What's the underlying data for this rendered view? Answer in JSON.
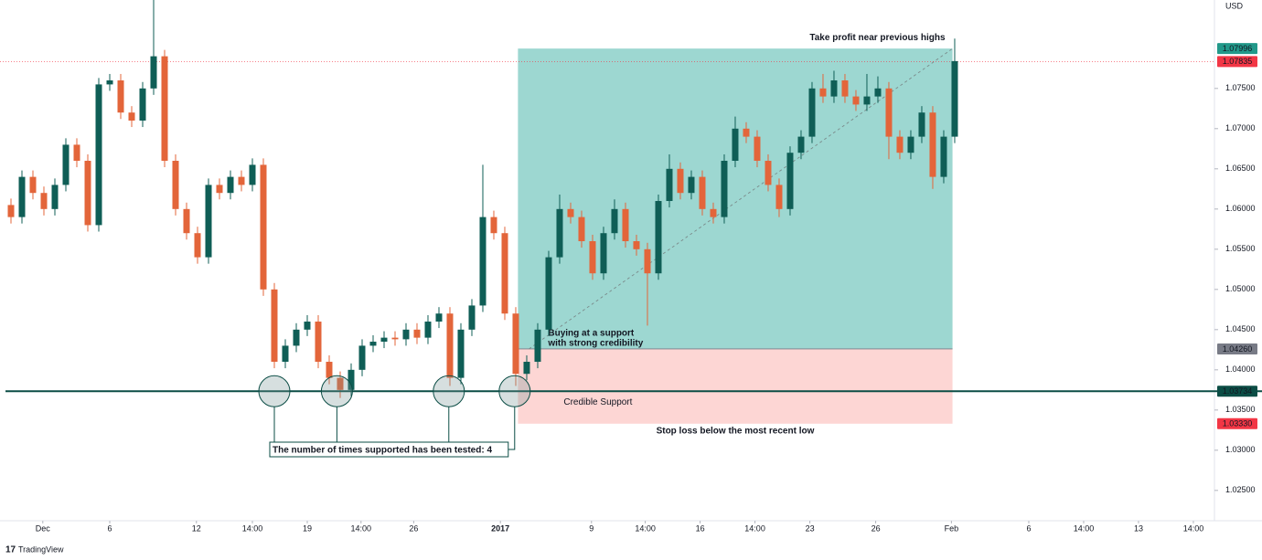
{
  "chart_data": {
    "type": "candlestick",
    "currency": "USD",
    "categories": [
      null,
      null,
      null,
      null,
      null,
      null,
      null,
      null,
      null,
      null,
      null,
      null,
      null,
      null,
      null,
      null,
      null,
      null,
      null,
      null,
      null,
      null,
      null,
      null,
      null,
      null,
      null,
      null,
      null,
      null,
      null,
      null,
      null,
      null,
      null,
      null,
      null,
      null,
      null,
      null,
      null,
      null,
      null,
      null,
      null,
      null,
      null,
      null,
      null,
      null,
      null,
      null,
      null,
      null,
      null,
      null,
      null,
      null,
      null,
      null,
      null,
      null,
      null,
      null,
      null,
      null,
      null,
      null,
      null,
      null,
      null,
      null,
      null,
      null,
      null,
      null,
      null,
      null,
      null,
      null,
      null,
      null,
      null,
      null,
      null,
      null,
      null
    ],
    "open": [
      1.0605,
      1.059,
      1.064,
      1.062,
      1.06,
      1.063,
      1.068,
      1.066,
      1.058,
      1.0755,
      1.076,
      1.072,
      1.071,
      1.075,
      1.079,
      1.066,
      1.06,
      1.057,
      1.054,
      1.063,
      1.062,
      1.064,
      1.063,
      1.0655,
      1.05,
      1.041,
      1.043,
      1.045,
      1.046,
      1.041,
      1.039,
      1.0375,
      1.04,
      1.043,
      1.0435,
      1.044,
      1.0438,
      1.045,
      1.044,
      1.046,
      1.047,
      1.039,
      1.045,
      1.048,
      1.059,
      1.057,
      1.047,
      1.0395,
      1.041,
      1.045,
      1.054,
      1.06,
      1.059,
      1.056,
      1.052,
      1.057,
      1.06,
      1.056,
      1.055,
      1.052,
      1.061,
      1.065,
      1.062,
      1.064,
      1.06,
      1.059,
      1.066,
      1.07,
      1.069,
      1.066,
      1.063,
      1.06,
      1.067,
      1.069,
      1.075,
      1.074,
      1.076,
      1.074,
      1.073,
      1.074,
      1.075,
      1.069,
      1.067,
      1.069,
      1.072,
      1.064,
      1.069
    ],
    "high": [
      1.0613,
      1.0648,
      1.0648,
      1.0628,
      1.0638,
      1.0688,
      1.0688,
      1.0668,
      1.0763,
      1.0768,
      1.0768,
      1.0728,
      1.0758,
      1.086,
      1.0798,
      1.0668,
      1.0608,
      1.0578,
      1.0638,
      1.0638,
      1.0648,
      1.0648,
      1.0663,
      1.0663,
      1.0508,
      1.0438,
      1.0458,
      1.0468,
      1.0468,
      1.0418,
      1.0398,
      1.0408,
      1.0438,
      1.0443,
      1.0448,
      1.0448,
      1.0458,
      1.0458,
      1.0468,
      1.0478,
      1.0478,
      1.0458,
      1.0488,
      1.0655,
      1.0598,
      1.0578,
      1.0478,
      1.0418,
      1.0458,
      1.0548,
      1.0618,
      1.0608,
      1.0598,
      1.0568,
      1.0578,
      1.0612,
      1.0608,
      1.0568,
      1.0558,
      1.0618,
      1.0668,
      1.0658,
      1.0648,
      1.0648,
      1.0608,
      1.0668,
      1.0715,
      1.0708,
      1.0698,
      1.0668,
      1.0638,
      1.0678,
      1.0698,
      1.0758,
      1.0768,
      1.0772,
      1.0768,
      1.0748,
      1.0768,
      1.0765,
      1.0758,
      1.0698,
      1.0698,
      1.0728,
      1.0728,
      1.0698,
      1.0812
    ],
    "low": [
      1.0582,
      1.0582,
      1.0612,
      1.0592,
      1.0592,
      1.0622,
      1.0652,
      1.0572,
      1.0572,
      1.0747,
      1.0712,
      1.0702,
      1.0702,
      1.0742,
      1.0652,
      1.0592,
      1.0562,
      1.0532,
      1.0532,
      1.0612,
      1.0612,
      1.0622,
      1.0622,
      1.0492,
      1.0402,
      1.0402,
      1.0422,
      1.0442,
      1.0402,
      1.0382,
      1.0365,
      1.0367,
      1.0392,
      1.0422,
      1.0427,
      1.043,
      1.043,
      1.0432,
      1.0432,
      1.0452,
      1.038,
      1.0382,
      1.0442,
      1.0472,
      1.0562,
      1.0462,
      1.038,
      1.0387,
      1.0402,
      1.0442,
      1.0532,
      1.0582,
      1.0552,
      1.0512,
      1.0512,
      1.0562,
      1.0552,
      1.0542,
      1.0455,
      1.0512,
      1.0602,
      1.0612,
      1.0612,
      1.0592,
      1.0582,
      1.0582,
      1.0652,
      1.0682,
      1.0652,
      1.0622,
      1.059,
      1.0592,
      1.0662,
      1.0682,
      1.0732,
      1.0732,
      1.0732,
      1.0722,
      1.0722,
      1.0732,
      1.0662,
      1.0662,
      1.0662,
      1.0682,
      1.0625,
      1.0632,
      1.0682
    ],
    "close": [
      1.059,
      1.064,
      1.062,
      1.06,
      1.063,
      1.068,
      1.066,
      1.058,
      1.0755,
      1.076,
      1.072,
      1.071,
      1.075,
      1.079,
      1.066,
      1.06,
      1.057,
      1.054,
      1.063,
      1.062,
      1.064,
      1.063,
      1.0655,
      1.05,
      1.041,
      1.043,
      1.045,
      1.046,
      1.041,
      1.039,
      1.0375,
      1.04,
      1.043,
      1.0435,
      1.044,
      1.0438,
      1.045,
      1.044,
      1.046,
      1.047,
      1.039,
      1.045,
      1.048,
      1.059,
      1.057,
      1.047,
      1.0395,
      1.041,
      1.045,
      1.054,
      1.06,
      1.059,
      1.056,
      1.052,
      1.057,
      1.06,
      1.056,
      1.055,
      1.052,
      1.061,
      1.065,
      1.062,
      1.064,
      1.06,
      1.059,
      1.066,
      1.07,
      1.069,
      1.066,
      1.063,
      1.06,
      1.067,
      1.069,
      1.075,
      1.074,
      1.076,
      1.074,
      1.073,
      1.074,
      1.075,
      1.069,
      1.067,
      1.069,
      1.072,
      1.064,
      1.069,
      1.0784
    ],
    "up_color": "#0f5e56",
    "down_color": "#e3653a",
    "xlim": [
      -1,
      109.67
    ],
    "xticks": [
      {
        "value": 2.9,
        "label": "Dec"
      },
      {
        "value": 9,
        "label": "6"
      },
      {
        "value": 16.9,
        "label": "12"
      },
      {
        "value": 22,
        "label": "14:00"
      },
      {
        "value": 27,
        "label": "19"
      },
      {
        "value": 31.9,
        "label": "14:00"
      },
      {
        "value": 36.7,
        "label": "26"
      },
      {
        "value": 44.6,
        "label": "2017"
      },
      {
        "value": 52.9,
        "label": "9"
      },
      {
        "value": 57.8,
        "label": "14:00"
      },
      {
        "value": 62.8,
        "label": "16"
      },
      {
        "value": 67.8,
        "label": "14:00"
      },
      {
        "value": 72.8,
        "label": "23"
      },
      {
        "value": 78.8,
        "label": "26"
      },
      {
        "value": 85.7,
        "label": "Feb"
      },
      {
        "value": 92.75,
        "label": "6"
      },
      {
        "value": 97.75,
        "label": "14:00"
      },
      {
        "value": 102.75,
        "label": "13"
      },
      {
        "value": 107.75,
        "label": "14:00"
      }
    ],
    "ylim": [
      1.0218,
      1.086
    ],
    "yticks": [
      {
        "value": 1.025,
        "label": "1.02500"
      },
      {
        "value": 1.03,
        "label": "1.03000"
      },
      {
        "value": 1.035,
        "label": "1.03500"
      },
      {
        "value": 1.04,
        "label": "1.04000"
      },
      {
        "value": 1.045,
        "label": "1.04500"
      },
      {
        "value": 1.05,
        "label": "1.05000"
      },
      {
        "value": 1.055,
        "label": "1.05500"
      },
      {
        "value": 1.06,
        "label": "1.06000"
      },
      {
        "value": 1.065,
        "label": "1.06500"
      },
      {
        "value": 1.07,
        "label": "1.07000"
      },
      {
        "value": 1.075,
        "label": "1.07500"
      }
    ],
    "current_price": 1.07835,
    "current_color": "#f23645",
    "position": {
      "x_range": [
        46.2,
        85.8
      ],
      "target": 1.07996,
      "target_label": "Take profit near previous highs",
      "entry": {
        "value": 1.0426,
        "label": "1.04260"
      },
      "entry_label": [
        "Buying at a support",
        "with strong credibility"
      ],
      "stop": {
        "value": 1.0333,
        "label": "1.03330"
      },
      "stop_label": "Stop loss below the most recent low"
    },
    "support": {
      "value": 1.03734,
      "label": "Credible Support",
      "touch_x": [
        24,
        29.7,
        39.9,
        45.9
      ],
      "note": "The number of times supported has been tested: 4"
    }
  },
  "brand": "TradingView"
}
